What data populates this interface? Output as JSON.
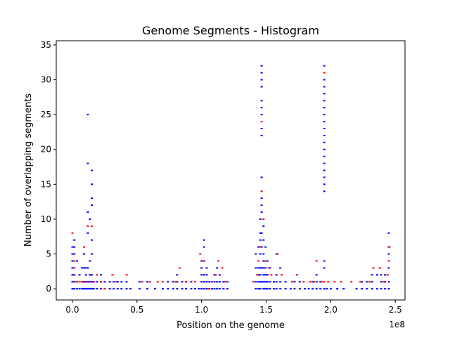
{
  "chart_data": {
    "type": "scatter",
    "title": "Genome Segments - Histogram",
    "xlabel": "Position on the genome",
    "ylabel": "Number of overlapping segments",
    "x_offset_label": "1e8",
    "xlim": [
      -0.125,
      2.575
    ],
    "ylim": [
      -1.6,
      35.6
    ],
    "x_ticks": [
      0.0,
      0.5,
      1.0,
      1.5,
      2.0,
      2.5
    ],
    "x_tick_labels": [
      "0.0",
      "0.5",
      "1.0",
      "1.5",
      "2.0",
      "2.5"
    ],
    "y_ticks": [
      0,
      5,
      10,
      15,
      20,
      25,
      30,
      35
    ],
    "y_tick_labels": [
      "0",
      "5",
      "10",
      "15",
      "20",
      "25",
      "30",
      "35"
    ],
    "grid": false,
    "marker": "dash",
    "series": [
      {
        "color": "#0000ff",
        "points": [
          [
            0.0,
            0
          ],
          [
            0.0,
            1
          ],
          [
            0.0,
            2
          ],
          [
            0.0,
            3
          ],
          [
            0.0,
            4
          ],
          [
            0.0,
            5
          ],
          [
            0.0,
            6
          ],
          [
            0.015,
            0
          ],
          [
            0.015,
            1
          ],
          [
            0.015,
            2
          ],
          [
            0.015,
            5
          ],
          [
            0.015,
            6
          ],
          [
            0.015,
            7
          ],
          [
            0.035,
            0
          ],
          [
            0.035,
            1
          ],
          [
            0.035,
            4
          ],
          [
            0.055,
            0
          ],
          [
            0.055,
            2
          ],
          [
            0.075,
            0
          ],
          [
            0.075,
            1
          ],
          [
            0.075,
            3
          ],
          [
            0.09,
            0
          ],
          [
            0.09,
            1
          ],
          [
            0.09,
            3
          ],
          [
            0.09,
            5
          ],
          [
            0.105,
            0
          ],
          [
            0.105,
            1
          ],
          [
            0.105,
            2
          ],
          [
            0.105,
            3
          ],
          [
            0.12,
            0
          ],
          [
            0.12,
            1
          ],
          [
            0.12,
            3
          ],
          [
            0.12,
            8
          ],
          [
            0.12,
            11
          ],
          [
            0.12,
            18
          ],
          [
            0.12,
            25
          ],
          [
            0.135,
            0
          ],
          [
            0.135,
            1
          ],
          [
            0.135,
            2
          ],
          [
            0.135,
            4
          ],
          [
            0.135,
            10
          ],
          [
            0.15,
            0
          ],
          [
            0.15,
            1
          ],
          [
            0.15,
            2
          ],
          [
            0.15,
            5
          ],
          [
            0.15,
            7
          ],
          [
            0.15,
            12
          ],
          [
            0.15,
            13
          ],
          [
            0.15,
            15
          ],
          [
            0.15,
            17
          ],
          [
            0.165,
            0
          ],
          [
            0.165,
            1
          ],
          [
            0.19,
            0
          ],
          [
            0.19,
            1
          ],
          [
            0.22,
            0
          ],
          [
            0.22,
            1
          ],
          [
            0.22,
            2
          ],
          [
            0.25,
            0
          ],
          [
            0.25,
            1
          ],
          [
            0.29,
            0
          ],
          [
            0.29,
            1
          ],
          [
            0.32,
            0
          ],
          [
            0.32,
            1
          ],
          [
            0.35,
            0
          ],
          [
            0.35,
            1
          ],
          [
            0.38,
            0
          ],
          [
            0.38,
            1
          ],
          [
            0.42,
            0
          ],
          [
            0.42,
            1
          ],
          [
            0.45,
            0
          ],
          [
            0.52,
            0
          ],
          [
            0.52,
            1
          ],
          [
            0.58,
            0
          ],
          [
            0.58,
            1
          ],
          [
            0.64,
            0
          ],
          [
            0.7,
            0
          ],
          [
            0.74,
            0
          ],
          [
            0.74,
            1
          ],
          [
            0.78,
            0
          ],
          [
            0.78,
            1
          ],
          [
            0.81,
            0
          ],
          [
            0.81,
            1
          ],
          [
            0.81,
            2
          ],
          [
            0.85,
            0
          ],
          [
            0.85,
            1
          ],
          [
            0.88,
            0
          ],
          [
            0.88,
            1
          ],
          [
            0.92,
            0
          ],
          [
            0.92,
            1
          ],
          [
            0.95,
            0
          ],
          [
            0.98,
            0
          ],
          [
            1.0,
            0
          ],
          [
            1.0,
            1
          ],
          [
            1.0,
            2
          ],
          [
            1.0,
            3
          ],
          [
            1.0,
            4
          ],
          [
            1.02,
            0
          ],
          [
            1.02,
            1
          ],
          [
            1.02,
            2
          ],
          [
            1.02,
            4
          ],
          [
            1.02,
            6
          ],
          [
            1.02,
            7
          ],
          [
            1.04,
            0
          ],
          [
            1.04,
            1
          ],
          [
            1.04,
            2
          ],
          [
            1.04,
            3
          ],
          [
            1.06,
            0
          ],
          [
            1.06,
            1
          ],
          [
            1.08,
            0
          ],
          [
            1.08,
            1
          ],
          [
            1.1,
            0
          ],
          [
            1.1,
            1
          ],
          [
            1.1,
            2
          ],
          [
            1.12,
            0
          ],
          [
            1.12,
            1
          ],
          [
            1.12,
            3
          ],
          [
            1.14,
            0
          ],
          [
            1.14,
            1
          ],
          [
            1.14,
            2
          ],
          [
            1.17,
            0
          ],
          [
            1.17,
            1
          ],
          [
            1.2,
            0
          ],
          [
            1.2,
            1
          ],
          [
            1.42,
            0
          ],
          [
            1.42,
            1
          ],
          [
            1.42,
            3
          ],
          [
            1.42,
            5
          ],
          [
            1.44,
            0
          ],
          [
            1.44,
            1
          ],
          [
            1.44,
            2
          ],
          [
            1.44,
            3
          ],
          [
            1.44,
            4
          ],
          [
            1.44,
            6
          ],
          [
            1.455,
            0
          ],
          [
            1.455,
            1
          ],
          [
            1.455,
            2
          ],
          [
            1.455,
            3
          ],
          [
            1.455,
            5
          ],
          [
            1.455,
            7
          ],
          [
            1.455,
            8
          ],
          [
            1.455,
            10
          ],
          [
            1.465,
            1
          ],
          [
            1.465,
            3
          ],
          [
            1.465,
            6
          ],
          [
            1.465,
            8
          ],
          [
            1.465,
            11
          ],
          [
            1.465,
            12
          ],
          [
            1.465,
            13
          ],
          [
            1.465,
            16
          ],
          [
            1.465,
            22
          ],
          [
            1.465,
            23
          ],
          [
            1.465,
            25
          ],
          [
            1.465,
            26
          ],
          [
            1.465,
            27
          ],
          [
            1.465,
            29
          ],
          [
            1.465,
            30
          ],
          [
            1.465,
            31
          ],
          [
            1.465,
            32
          ],
          [
            1.48,
            0
          ],
          [
            1.48,
            1
          ],
          [
            1.48,
            2
          ],
          [
            1.48,
            3
          ],
          [
            1.48,
            4
          ],
          [
            1.48,
            5
          ],
          [
            1.48,
            7
          ],
          [
            1.48,
            9
          ],
          [
            1.495,
            0
          ],
          [
            1.495,
            1
          ],
          [
            1.495,
            2
          ],
          [
            1.495,
            3
          ],
          [
            1.495,
            6
          ],
          [
            1.51,
            0
          ],
          [
            1.51,
            1
          ],
          [
            1.51,
            2
          ],
          [
            1.51,
            4
          ],
          [
            1.53,
            0
          ],
          [
            1.53,
            1
          ],
          [
            1.53,
            3
          ],
          [
            1.56,
            0
          ],
          [
            1.56,
            1
          ],
          [
            1.58,
            0
          ],
          [
            1.58,
            1
          ],
          [
            1.58,
            2
          ],
          [
            1.58,
            5
          ],
          [
            1.61,
            0
          ],
          [
            1.61,
            1
          ],
          [
            1.61,
            3
          ],
          [
            1.65,
            0
          ],
          [
            1.65,
            1
          ],
          [
            1.69,
            0
          ],
          [
            1.72,
            0
          ],
          [
            1.72,
            1
          ],
          [
            1.76,
            0
          ],
          [
            1.76,
            1
          ],
          [
            1.8,
            0
          ],
          [
            1.83,
            0
          ],
          [
            1.86,
            0
          ],
          [
            1.86,
            1
          ],
          [
            1.89,
            0
          ],
          [
            1.89,
            1
          ],
          [
            1.89,
            2
          ],
          [
            1.92,
            0
          ],
          [
            1.92,
            1
          ],
          [
            1.95,
            0
          ],
          [
            1.95,
            3
          ],
          [
            1.95,
            4
          ],
          [
            1.95,
            14
          ],
          [
            1.95,
            15
          ],
          [
            1.95,
            16
          ],
          [
            1.95,
            17
          ],
          [
            1.95,
            18
          ],
          [
            1.95,
            19
          ],
          [
            1.95,
            20
          ],
          [
            1.95,
            21
          ],
          [
            1.95,
            22
          ],
          [
            1.95,
            23
          ],
          [
            1.95,
            24
          ],
          [
            1.95,
            25
          ],
          [
            1.95,
            26
          ],
          [
            1.95,
            27
          ],
          [
            1.95,
            28
          ],
          [
            1.95,
            29
          ],
          [
            1.95,
            30
          ],
          [
            1.95,
            32
          ],
          [
            1.97,
            0
          ],
          [
            2.0,
            0
          ],
          [
            2.05,
            0
          ],
          [
            2.1,
            0
          ],
          [
            2.2,
            0
          ],
          [
            2.24,
            0
          ],
          [
            2.24,
            1
          ],
          [
            2.28,
            0
          ],
          [
            2.28,
            1
          ],
          [
            2.32,
            0
          ],
          [
            2.32,
            1
          ],
          [
            2.32,
            2
          ],
          [
            2.36,
            0
          ],
          [
            2.36,
            2
          ],
          [
            2.39,
            0
          ],
          [
            2.39,
            1
          ],
          [
            2.39,
            2
          ],
          [
            2.42,
            0
          ],
          [
            2.42,
            1
          ],
          [
            2.42,
            2
          ],
          [
            2.45,
            0
          ],
          [
            2.45,
            1
          ],
          [
            2.45,
            3
          ],
          [
            2.45,
            5
          ],
          [
            2.45,
            6
          ],
          [
            2.45,
            8
          ]
        ]
      },
      {
        "color": "#ff0000",
        "points": [
          [
            0.0,
            8
          ],
          [
            0.015,
            3
          ],
          [
            0.015,
            4
          ],
          [
            0.035,
            1
          ],
          [
            0.055,
            1
          ],
          [
            0.075,
            1
          ],
          [
            0.09,
            6
          ],
          [
            0.105,
            1
          ],
          [
            0.12,
            9
          ],
          [
            0.15,
            9
          ],
          [
            0.165,
            1
          ],
          [
            0.19,
            2
          ],
          [
            0.22,
            1
          ],
          [
            0.25,
            0
          ],
          [
            0.31,
            2
          ],
          [
            0.34,
            1
          ],
          [
            0.42,
            2
          ],
          [
            0.54,
            1
          ],
          [
            0.6,
            1
          ],
          [
            0.66,
            1
          ],
          [
            0.7,
            1
          ],
          [
            0.8,
            1
          ],
          [
            0.83,
            3
          ],
          [
            0.88,
            1
          ],
          [
            0.95,
            1
          ],
          [
            0.99,
            5
          ],
          [
            1.01,
            4
          ],
          [
            1.05,
            0
          ],
          [
            1.08,
            1
          ],
          [
            1.11,
            2
          ],
          [
            1.13,
            4
          ],
          [
            1.16,
            3
          ],
          [
            1.18,
            1
          ],
          [
            1.4,
            1
          ],
          [
            1.43,
            2
          ],
          [
            1.44,
            4
          ],
          [
            1.455,
            6
          ],
          [
            1.465,
            14
          ],
          [
            1.465,
            24
          ],
          [
            1.48,
            10
          ],
          [
            1.495,
            4
          ],
          [
            1.52,
            3
          ],
          [
            1.54,
            2
          ],
          [
            1.59,
            5
          ],
          [
            1.62,
            2
          ],
          [
            1.7,
            1
          ],
          [
            1.74,
            2
          ],
          [
            1.79,
            1
          ],
          [
            1.84,
            1
          ],
          [
            1.87,
            1
          ],
          [
            1.89,
            4
          ],
          [
            1.93,
            1
          ],
          [
            1.95,
            1
          ],
          [
            1.95,
            31
          ],
          [
            1.98,
            1
          ],
          [
            2.03,
            1
          ],
          [
            2.08,
            1
          ],
          [
            2.16,
            1
          ],
          [
            2.23,
            1
          ],
          [
            2.3,
            1
          ],
          [
            2.33,
            3
          ],
          [
            2.38,
            3
          ],
          [
            2.41,
            1
          ],
          [
            2.44,
            2
          ],
          [
            2.45,
            4
          ],
          [
            2.455,
            6
          ]
        ]
      }
    ]
  }
}
